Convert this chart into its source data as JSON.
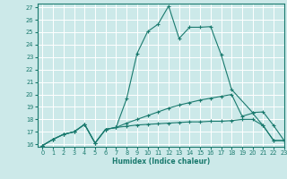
{
  "xlabel": "Humidex (Indice chaleur)",
  "bg_color": "#cce9e9",
  "grid_color": "#ffffff",
  "line_color": "#1a7a6e",
  "xlim": [
    -0.5,
    23
  ],
  "ylim": [
    15.8,
    27.3
  ],
  "xticks": [
    0,
    1,
    2,
    3,
    4,
    5,
    6,
    7,
    8,
    9,
    10,
    11,
    12,
    13,
    14,
    15,
    16,
    17,
    18,
    19,
    20,
    21,
    22,
    23
  ],
  "yticks": [
    16,
    17,
    18,
    19,
    20,
    21,
    22,
    23,
    24,
    25,
    26,
    27
  ],
  "line1_x": [
    0,
    1,
    2,
    3,
    4,
    5,
    6,
    7,
    8,
    9,
    10,
    11,
    12,
    13,
    14,
    15,
    16,
    17,
    18,
    20,
    21,
    22,
    23
  ],
  "line1_y": [
    15.9,
    16.4,
    16.8,
    17.0,
    17.6,
    16.1,
    17.2,
    17.35,
    19.65,
    23.3,
    25.05,
    25.65,
    27.1,
    24.5,
    25.4,
    25.4,
    25.45,
    23.2,
    20.4,
    18.55,
    18.6,
    17.5,
    16.3
  ],
  "line2_x": [
    0,
    1,
    2,
    3,
    4,
    5,
    6,
    7,
    8,
    9,
    10,
    11,
    12,
    13,
    14,
    15,
    16,
    17,
    18,
    19,
    20,
    21,
    22,
    23
  ],
  "line2_y": [
    15.9,
    16.4,
    16.8,
    17.0,
    17.6,
    16.1,
    17.2,
    17.35,
    17.7,
    18.0,
    18.3,
    18.6,
    18.9,
    19.15,
    19.35,
    19.55,
    19.7,
    19.85,
    20.0,
    18.25,
    18.5,
    17.5,
    16.3,
    16.3
  ],
  "line3_x": [
    0,
    1,
    2,
    3,
    4,
    5,
    6,
    7,
    8,
    9,
    10,
    11,
    12,
    13,
    14,
    15,
    16,
    17,
    18,
    19,
    20,
    21,
    22,
    23
  ],
  "line3_y": [
    15.9,
    16.4,
    16.8,
    17.0,
    17.6,
    16.1,
    17.2,
    17.35,
    17.45,
    17.55,
    17.6,
    17.65,
    17.7,
    17.75,
    17.8,
    17.8,
    17.85,
    17.85,
    17.9,
    18.0,
    18.0,
    17.5,
    16.3,
    16.3
  ]
}
